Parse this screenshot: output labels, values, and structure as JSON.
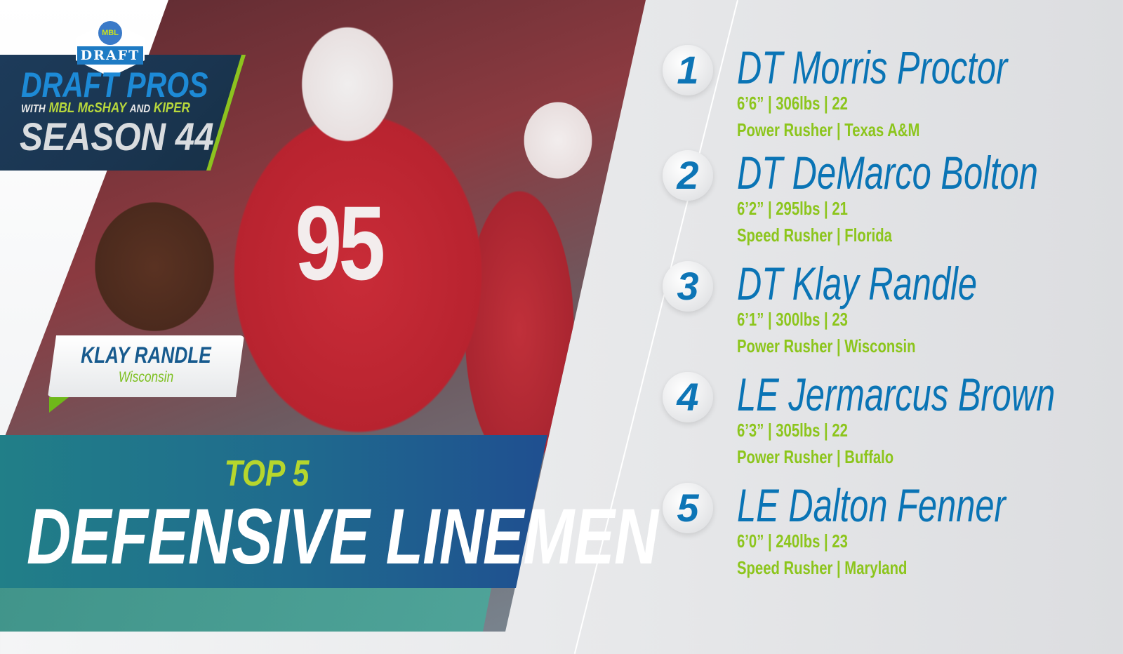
{
  "logo": {
    "badge": "DRAFT",
    "emblem": "MBL",
    "line1": "DRAFT PROS",
    "line2_with": "WITH",
    "line2_a": "MBL McSHAY",
    "line2_and": "AND",
    "line2_b": "KIPER",
    "line3": "SEASON 44"
  },
  "photo": {
    "jersey_number": "95"
  },
  "featured": {
    "name": "KLAY RANDLE",
    "school": "Wisconsin"
  },
  "banner": {
    "kicker": "TOP 5",
    "title": "DEFENSIVE LINEMEN"
  },
  "colors": {
    "blue": "#0a74b5",
    "green": "#8cc51c",
    "red": "#b8232f"
  },
  "rankings": [
    {
      "rank": "1",
      "name": "DT Morris Proctor",
      "stats": "6’6” | 306lbs | 22",
      "type": "Power Rusher | Texas A&M"
    },
    {
      "rank": "2",
      "name": "DT DeMarco Bolton",
      "stats": "6’2” | 295lbs | 21",
      "type": "Speed Rusher | Florida"
    },
    {
      "rank": "3",
      "name": "DT Klay Randle",
      "stats": "6’1” | 300lbs | 23",
      "type": "Power Rusher | Wisconsin"
    },
    {
      "rank": "4",
      "name": "LE Jermarcus Brown",
      "stats": "6’3” | 305lbs | 22",
      "type": "Power Rusher | Buffalo"
    },
    {
      "rank": "5",
      "name": "LE Dalton Fenner",
      "stats": "6’0” | 240lbs | 23",
      "type": "Speed Rusher | Maryland"
    }
  ]
}
